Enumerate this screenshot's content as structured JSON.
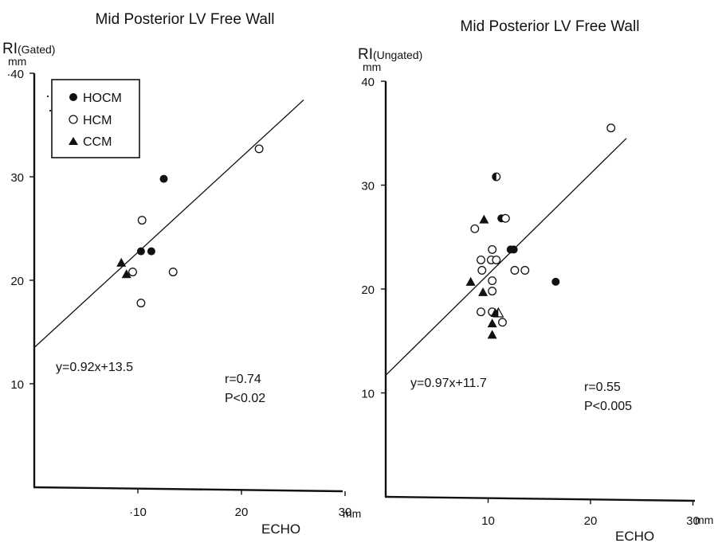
{
  "chart_data": [
    {
      "type": "scatter",
      "title": "Mid Posterior LV Free Wall",
      "ylabel": "RI",
      "ylabel_sub": "(Gated)",
      "yunit": "mm",
      "xlabel": "ECHO",
      "xunit": "mm",
      "xlim": [
        0,
        30
      ],
      "ylim": [
        0,
        40
      ],
      "xticks": [
        10,
        20,
        30
      ],
      "yticks": [
        10,
        20,
        30,
        40
      ],
      "xtick_labels": [
        "·10",
        "20",
        "30"
      ],
      "ytick_labels": [
        "10",
        "20",
        "30",
        "·40"
      ],
      "legend": {
        "placement": "top-left",
        "entries": [
          {
            "marker": "filled-circle",
            "label": "HOCM"
          },
          {
            "marker": "open-circle",
            "label": "HCM"
          },
          {
            "marker": "filled-triangle",
            "label": "CCM"
          }
        ]
      },
      "series": [
        {
          "name": "HOCM",
          "marker": "filled-circle",
          "points": [
            [
              12.5,
              29.8
            ],
            [
              10.3,
              22.8
            ],
            [
              11.3,
              22.8
            ]
          ]
        },
        {
          "name": "HCM",
          "marker": "open-circle",
          "points": [
            [
              10.4,
              25.8
            ],
            [
              9.5,
              20.8
            ],
            [
              10.3,
              17.8
            ],
            [
              13.4,
              20.8
            ],
            [
              21.7,
              32.7
            ]
          ]
        },
        {
          "name": "CCM",
          "marker": "filled-triangle",
          "points": [
            [
              8.4,
              21.7
            ],
            [
              8.9,
              20.6
            ]
          ]
        }
      ],
      "regression": {
        "slope": 0.92,
        "intercept": 13.5,
        "x_range": [
          0,
          26
        ]
      },
      "equation": "y=0.92x+13.5",
      "r_text": "r=0.74",
      "p_text": "P<0.02"
    },
    {
      "type": "scatter",
      "title": "Mid Posterior LV Free Wall",
      "ylabel": "RI",
      "ylabel_sub": "(Ungated)",
      "yunit": "mm",
      "xlabel": "ECHO",
      "xunit": "mm",
      "xlim": [
        0,
        30
      ],
      "ylim": [
        0,
        40
      ],
      "xticks": [
        10,
        20,
        30
      ],
      "yticks": [
        10,
        20,
        30,
        40
      ],
      "xtick_labels": [
        "10",
        "20",
        "30"
      ],
      "ytick_labels": [
        "10",
        "20",
        "30",
        "40"
      ],
      "series": [
        {
          "name": "HOCM",
          "marker": "filled-circle",
          "points": [
            [
              10.8,
              30.8
            ],
            [
              11.3,
              26.8
            ],
            [
              12.2,
              23.8
            ],
            [
              12.5,
              23.8
            ],
            [
              16.6,
              20.7
            ]
          ]
        },
        {
          "name": "HCM",
          "marker": "open-circle",
          "points": [
            [
              11.7,
              26.8
            ],
            [
              8.7,
              25.8
            ],
            [
              10.4,
              23.8
            ],
            [
              9.3,
              22.8
            ],
            [
              10.3,
              22.8
            ],
            [
              10.8,
              22.8
            ],
            [
              9.4,
              21.8
            ],
            [
              12.6,
              21.8
            ],
            [
              13.6,
              21.8
            ],
            [
              10.4,
              20.8
            ],
            [
              10.4,
              19.8
            ],
            [
              9.3,
              17.8
            ],
            [
              10.4,
              17.8
            ],
            [
              11.4,
              16.8
            ],
            [
              22.0,
              35.5
            ]
          ]
        },
        {
          "name": "CCM",
          "marker": "filled-triangle",
          "points": [
            [
              9.6,
              26.7
            ],
            [
              8.3,
              20.7
            ],
            [
              9.5,
              19.7
            ],
            [
              10.7,
              17.7
            ],
            [
              11.0,
              17.7
            ],
            [
              10.4,
              16.7
            ],
            [
              10.4,
              15.6
            ]
          ]
        },
        {
          "name": "HOCM+HCM",
          "marker": "half-circle",
          "points": [
            [
              10.8,
              30.8
            ]
          ]
        },
        {
          "name": "CCM+HCM",
          "marker": "half-triangle",
          "points": [
            [
              11.0,
              17.7
            ]
          ]
        }
      ],
      "regression": {
        "slope": 0.97,
        "intercept": 11.7,
        "x_range": [
          0,
          23.5
        ]
      },
      "equation": "y=0.97x+11.7",
      "r_text": "r=0.55",
      "p_text": "P<0.005"
    }
  ]
}
